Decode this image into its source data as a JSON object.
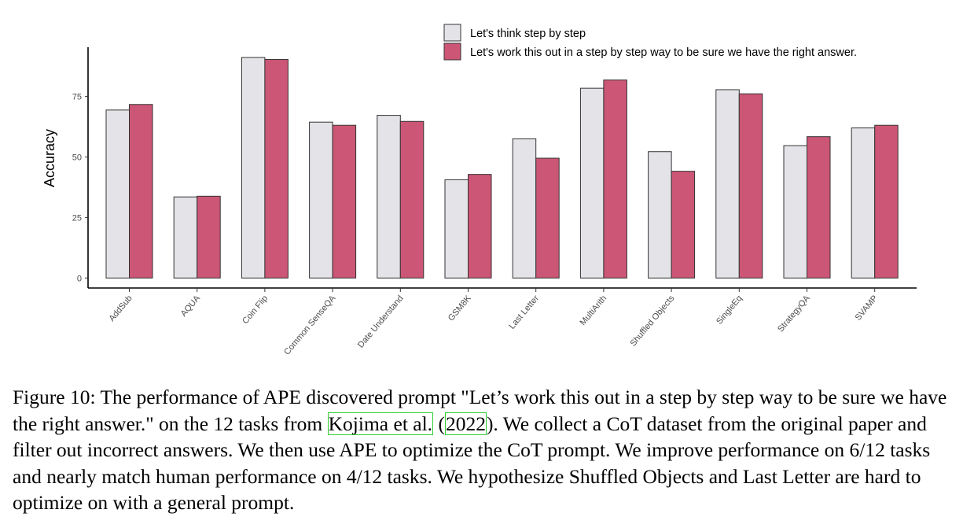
{
  "chart_data": {
    "type": "bar",
    "ylabel": "Accuracy",
    "xlabel": "",
    "ylim": [
      -4,
      95.5
    ],
    "yticks": [
      0,
      25,
      50,
      75
    ],
    "grid": false,
    "legend_position": "top-right",
    "categories": [
      "AddSub",
      "AQUA",
      "Coin Flip",
      "Common SenseQA",
      "Date Understand",
      "GSM8K",
      "Last Letter",
      "MultiArith",
      "Shuffled Objects",
      "SingleEq",
      "StrategyQA",
      "SVAMP"
    ],
    "series": [
      {
        "name": "Let's think step by step",
        "color": "#e4e3e8",
        "values": [
          69.4,
          33.5,
          91.1,
          64.4,
          67.2,
          40.6,
          57.5,
          78.4,
          52.2,
          77.8,
          54.7,
          62.0
        ]
      },
      {
        "name": "Let's work this out in a step by step way to be sure we have the right answer.",
        "color": "#cc5675",
        "values": [
          71.7,
          33.8,
          90.3,
          63.1,
          64.7,
          42.8,
          49.5,
          81.8,
          44.1,
          76.1,
          58.4,
          63.1
        ]
      }
    ]
  },
  "caption": {
    "before": "Figure 10: The performance of APE discovered prompt \"Let’s work this out in a step by step way to be sure we have the right answer.\" on the 12 tasks from ",
    "cite_author": "Kojima et al.",
    "cite_open": " (",
    "cite_year": "2022",
    "after": "). We collect a CoT dataset from the original paper and filter out incorrect answers. We then use APE to optimize the CoT prompt. We improve performance on 6/12 tasks and nearly match human performance on 4/12 tasks. We hypothesize Shuffled Objects and Last Letter are hard to optimize on with a general prompt.",
    "link_color": "#2fcf2f"
  }
}
